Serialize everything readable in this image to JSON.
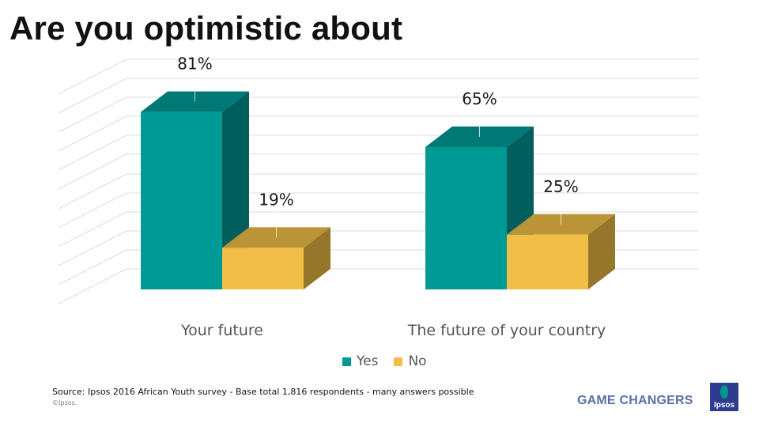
{
  "title": "Are you optimistic about",
  "chart_data": {
    "type": "bar",
    "style": "3d-clustered-column",
    "title": "Are you optimistic about",
    "categories": [
      "Your future",
      "The future of your country"
    ],
    "series": [
      {
        "name": "Yes",
        "values": [
          81,
          65
        ],
        "color": "#009a96"
      },
      {
        "name": "No",
        "values": [
          19,
          25
        ],
        "color": "#f0be46"
      }
    ],
    "data_labels": [
      [
        "81%",
        "65%"
      ],
      [
        "19%",
        "25%"
      ]
    ],
    "ylim": [
      0,
      100
    ],
    "xlabel": "",
    "ylabel": "",
    "grid": true,
    "legend_position": "bottom"
  },
  "legend": {
    "items": [
      {
        "label": "Yes",
        "color": "#009a96"
      },
      {
        "label": "No",
        "color": "#f0be46"
      }
    ]
  },
  "footer": {
    "source": "Source: Ipsos  2016 African Youth survey - Base total 1,816 respondents - many answers possible",
    "copyright": "©Ipsos.",
    "tagline": "GAME CHANGERS",
    "logo_text": "Ipsos"
  }
}
